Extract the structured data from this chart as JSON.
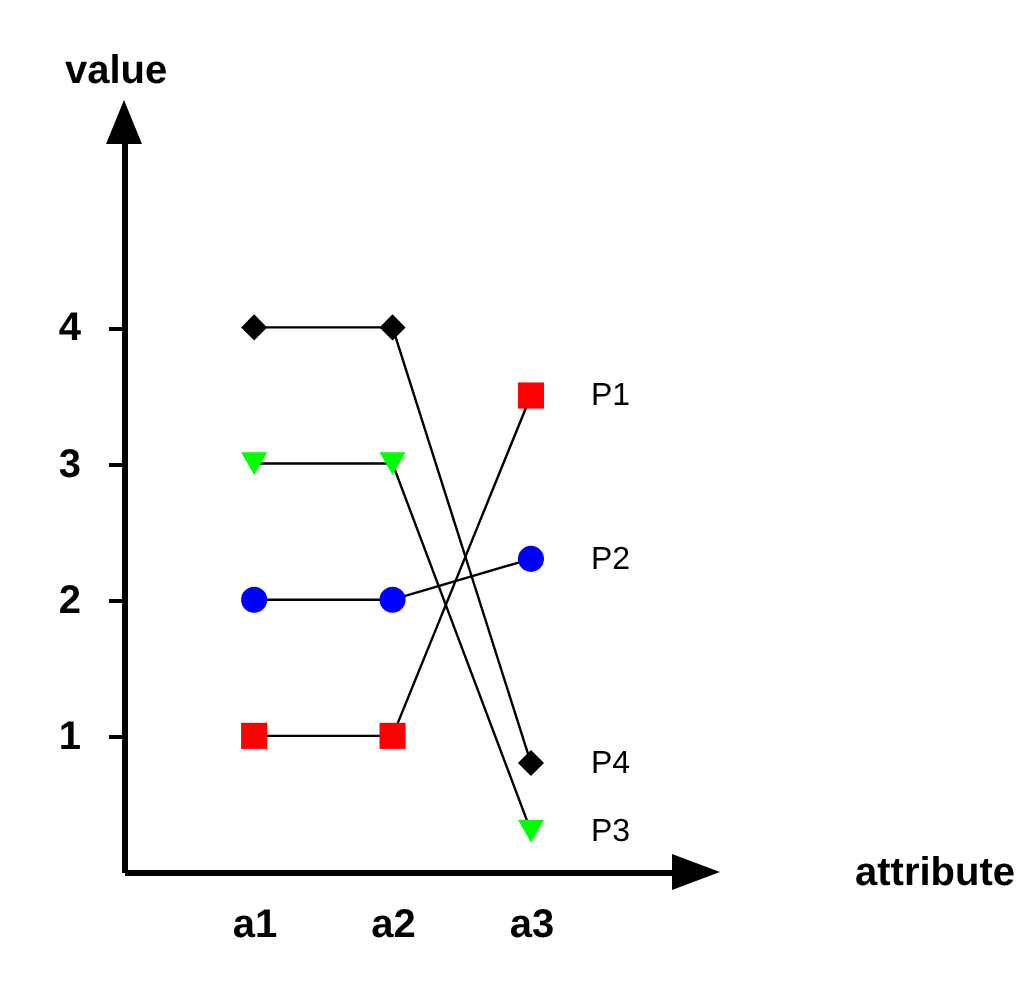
{
  "chart_data": {
    "type": "line",
    "xlabel": "attribute",
    "ylabel": "value",
    "categories": [
      "a1",
      "a2",
      "a3"
    ],
    "series": [
      {
        "name": "P1",
        "color": "#ff0000",
        "marker": "square",
        "values": [
          1,
          1,
          3.5
        ]
      },
      {
        "name": "P2",
        "color": "#0000ff",
        "marker": "circle",
        "values": [
          2,
          2,
          2.3
        ]
      },
      {
        "name": "P3",
        "color": "#00ff00",
        "marker": "triangle",
        "values": [
          3,
          3,
          0.3
        ]
      },
      {
        "name": "P4",
        "color": "#000000",
        "marker": "diamond",
        "values": [
          4,
          4,
          0.8
        ]
      }
    ],
    "ylim": [
      0,
      5.45
    ],
    "yticks": [
      1,
      2,
      3,
      4
    ],
    "grid": false,
    "legend": false
  }
}
